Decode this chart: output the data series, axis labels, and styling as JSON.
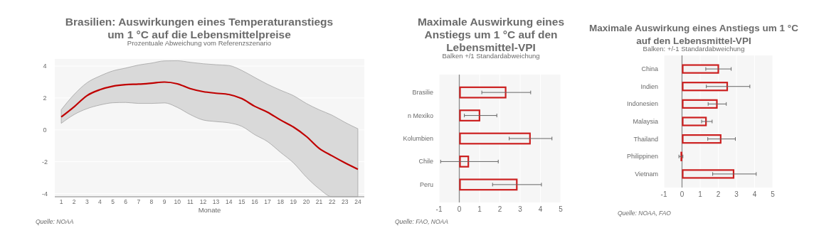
{
  "chart_data": [
    {
      "type": "line",
      "title": "Brasilien: Auswirkungen eines Temperaturanstiegs um 1 °C auf die Lebensmittelpreise",
      "subtitle": "Prozentuale Abweichung vom Referenzszenario",
      "xlabel": "Monate",
      "annotations": [
        "Quelle: NOAA"
      ],
      "x": [
        1,
        2,
        3,
        4,
        5,
        6,
        7,
        8,
        9,
        10,
        11,
        12,
        13,
        14,
        15,
        16,
        17,
        18,
        19,
        20,
        21,
        22,
        23,
        24
      ],
      "xlim": [
        0.5,
        24.5
      ],
      "xticks": [
        1,
        2,
        3,
        4,
        5,
        6,
        7,
        8,
        9,
        10,
        11,
        12,
        13,
        14,
        15,
        16,
        17,
        18,
        19,
        20,
        21,
        22,
        23,
        24
      ],
      "ylim": [
        -4.2,
        4.45
      ],
      "yticks": [
        -4,
        -2,
        0,
        2,
        4
      ],
      "grid": "y",
      "series": [
        {
          "color": "#c00000",
          "values": [
            0.81,
            1.45,
            2.15,
            2.52,
            2.74,
            2.84,
            2.87,
            2.93,
            3.0,
            2.89,
            2.59,
            2.4,
            2.3,
            2.22,
            1.96,
            1.48,
            1.11,
            0.62,
            0.18,
            -0.41,
            -1.16,
            -1.63,
            -2.07,
            -2.47
          ],
          "upper": [
            1.26,
            2.22,
            2.96,
            3.38,
            3.7,
            3.88,
            4.07,
            4.19,
            4.33,
            4.34,
            4.24,
            4.15,
            4.09,
            4.04,
            3.73,
            3.29,
            2.86,
            2.49,
            2.15,
            1.66,
            1.26,
            0.92,
            0.47,
            0.07
          ],
          "lower": [
            0.41,
            0.96,
            1.33,
            1.56,
            1.7,
            1.72,
            1.66,
            1.66,
            1.69,
            1.41,
            0.96,
            0.62,
            0.52,
            0.44,
            0.22,
            -0.3,
            -0.74,
            -1.41,
            -2.07,
            -2.96,
            -3.7,
            -4.2,
            -4.2,
            -4.2
          ]
        }
      ]
    },
    {
      "type": "bar",
      "orientation": "horizontal",
      "title": "Maximale Auswirkung eines Anstiegs um 1 °C auf den Lebensmittel-VPI",
      "subtitle": "Balken +/1 Standardabweichung",
      "annotations": [
        "Quelle: FAO, NOAA"
      ],
      "categories": [
        "Brasilie",
        "n Mexiko",
        "Kolumbien",
        "Chile",
        "Peru"
      ],
      "values": [
        2.32,
        1.03,
        3.52,
        0.48,
        2.87
      ],
      "errors": [
        [
          1.11,
          3.52
        ],
        [
          0.25,
          1.85
        ],
        [
          2.46,
          4.57
        ],
        [
          -0.92,
          1.92
        ],
        [
          1.64,
          4.05
        ]
      ],
      "color": "#cc2020",
      "xlim": [
        -1,
        5
      ],
      "xticks": [
        -1,
        0,
        1,
        2,
        3,
        4,
        5
      ],
      "grid": "x"
    },
    {
      "type": "bar",
      "orientation": "horizontal",
      "title": "Maximale Auswirkung eines Anstiegs um 1 °C auf den Lebensmittel-VPI",
      "subtitle": "Balken: +/-1 Standardabweichung",
      "annotations": [
        "Quelle: NOAA, FAO"
      ],
      "categories": [
        "China",
        "Indien",
        "Indonesien",
        "Malaysia",
        "Thailand",
        "Philippinen",
        "Vietnam"
      ],
      "values": [
        2.04,
        2.53,
        1.96,
        1.36,
        2.17,
        -0.08,
        2.88
      ],
      "errors": [
        [
          1.31,
          2.71
        ],
        [
          1.34,
          3.74
        ],
        [
          1.44,
          2.44
        ],
        [
          1.08,
          1.66
        ],
        [
          1.42,
          2.94
        ],
        [
          -0.17,
          0.05
        ],
        [
          1.69,
          4.09
        ]
      ],
      "color": "#cc2020",
      "xlim": [
        -1,
        5
      ],
      "xticks": [
        -1,
        0,
        1,
        2,
        3,
        4,
        5
      ],
      "grid": "x"
    }
  ]
}
